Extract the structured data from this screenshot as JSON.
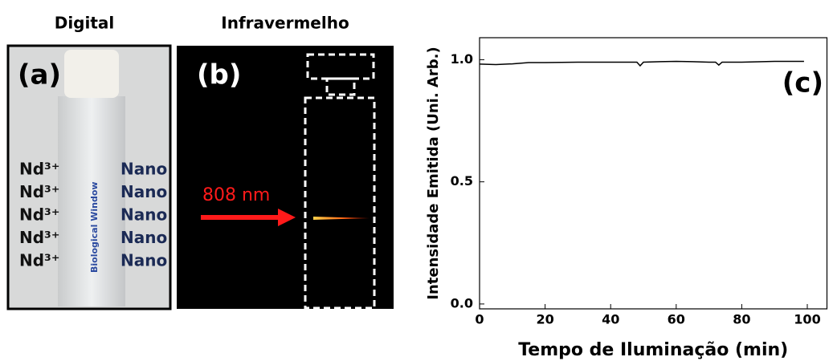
{
  "panel_a": {
    "title": "Digital",
    "label": "(a)",
    "rows": [
      "Nd³⁺",
      "Nd³⁺",
      "Nd³⁺",
      "Nd³⁺",
      "Nd³⁺"
    ],
    "right_rows": [
      "Nano",
      "Nano",
      "Nano",
      "Nano",
      "Nano"
    ],
    "vial_text": "Biological Window"
  },
  "panel_b": {
    "title": "Infravermelho",
    "label": "(b)",
    "laser": "808 nm"
  },
  "chart_data": {
    "type": "line",
    "label": "(c)",
    "xlabel": "Tempo de Iluminação (min)",
    "ylabel": "Intensidade Emitida (Uni. Arb.)",
    "x": [
      0,
      5,
      10,
      15,
      20,
      30,
      40,
      48,
      49,
      50,
      55,
      60,
      65,
      70,
      72,
      73,
      74,
      80,
      90,
      99
    ],
    "series": [
      {
        "color": "#000000",
        "values": [
          0.982,
          0.98,
          0.983,
          0.988,
          0.988,
          0.99,
          0.99,
          0.99,
          0.975,
          0.99,
          0.992,
          0.993,
          0.992,
          0.99,
          0.99,
          0.978,
          0.99,
          0.99,
          0.993,
          0.993
        ]
      }
    ],
    "xlim": [
      0,
      106
    ],
    "ylim": [
      -0.02,
      1.09
    ],
    "xticks": [
      0,
      20,
      40,
      60,
      80,
      100
    ],
    "yticks": [
      {
        "value": 0,
        "label": "0.0"
      },
      {
        "value": 0.5,
        "label": "0.5"
      },
      {
        "value": 1,
        "label": "1.0"
      }
    ],
    "grid": false
  }
}
